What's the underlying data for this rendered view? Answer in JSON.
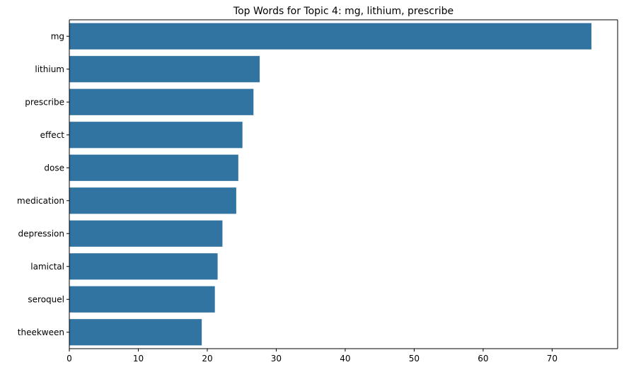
{
  "chart_data": {
    "type": "bar",
    "orientation": "horizontal",
    "title": "Top Words for Topic 4: mg, lithium, prescribe",
    "xlabel": "",
    "ylabel": "",
    "categories": [
      "mg",
      "lithium",
      "prescribe",
      "effect",
      "dose",
      "medication",
      "depression",
      "lamictal",
      "seroquel",
      "theekween"
    ],
    "values": [
      75.7,
      27.6,
      26.7,
      25.1,
      24.5,
      24.2,
      22.2,
      21.5,
      21.1,
      19.2
    ],
    "xlim": [
      0,
      79.5
    ],
    "xticks": [
      0,
      10,
      20,
      30,
      40,
      50,
      60,
      70
    ],
    "bar_color": "#3274a1",
    "grid": false
  }
}
